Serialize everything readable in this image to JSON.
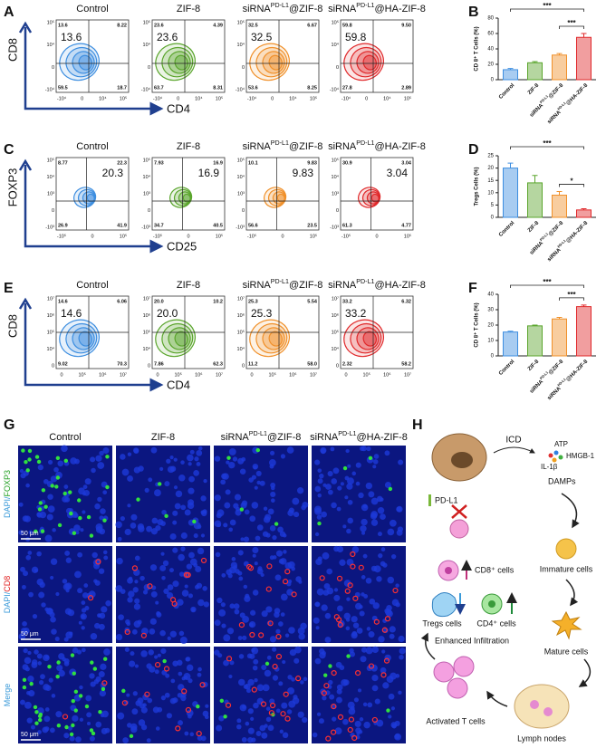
{
  "groups": [
    {
      "text": "Control",
      "color": "#3d8ee0"
    },
    {
      "text": "ZIF-8",
      "color": "#5aa52c"
    },
    {
      "text": "siRNA",
      "sup": "PD-L1",
      "after": "@ZIF-8",
      "color": "#f0902a"
    },
    {
      "text": "siRNA",
      "sup": "PD-L1",
      "after": "@HA-ZIF-8",
      "color": "#e0282a"
    }
  ],
  "panels": {
    "A": {
      "type": "flow",
      "letter": "A",
      "y_axis": "CD8",
      "x_axis": "CD4",
      "yticks": [
        "10⁵",
        "10⁴",
        "0",
        "-10⁴"
      ],
      "xticks": [
        "-10⁴",
        "0",
        "10⁴",
        "10⁵"
      ],
      "plots": [
        {
          "big": "13.6",
          "q": [
            "13.6",
            "8.22",
            "59.5",
            "18.7"
          ]
        },
        {
          "big": "23.6",
          "q": [
            "23.6",
            "4.39",
            "63.7",
            "8.31"
          ]
        },
        {
          "big": "32.5",
          "q": [
            "32.5",
            "6.67",
            "53.6",
            "8.25"
          ]
        },
        {
          "big": "59.8",
          "q": [
            "59.8",
            "9.50",
            "27.8",
            "2.89"
          ]
        }
      ]
    },
    "B": {
      "type": "bar",
      "letter": "B",
      "y_label": "CD 8⁺ T Cells (%)",
      "ylim": [
        0,
        80
      ],
      "yticks": [
        0,
        20,
        40,
        60,
        80
      ],
      "values": [
        13,
        22,
        32,
        55
      ],
      "errors": [
        1.5,
        1.5,
        2,
        5
      ],
      "significance": [
        "***",
        "***"
      ]
    },
    "C": {
      "type": "flow",
      "letter": "C",
      "y_axis": "FOXP3",
      "x_axis": "CD25",
      "yticks": [
        "10⁵",
        "10⁴",
        "10³",
        "0",
        "-10³"
      ],
      "xticks": [
        "-10⁵",
        "0",
        "10⁵"
      ],
      "plots": [
        {
          "big": "20.3",
          "q": [
            "8.77",
            "22.3",
            "26.9",
            "41.9"
          ]
        },
        {
          "big": "16.9",
          "q": [
            "7.93",
            "16.9",
            "34.7",
            "40.5"
          ]
        },
        {
          "big": "9.83",
          "q": [
            "10.1",
            "9.83",
            "56.6",
            "23.5"
          ]
        },
        {
          "big": "3.04",
          "q": [
            "30.9",
            "3.04",
            "61.3",
            "4.77"
          ]
        }
      ]
    },
    "D": {
      "type": "bar",
      "letter": "D",
      "y_label": "Tregs Cells (%)",
      "ylim": [
        0,
        25
      ],
      "yticks": [
        0,
        5,
        10,
        15,
        20,
        25
      ],
      "values": [
        20,
        14,
        9,
        3
      ],
      "errors": [
        2,
        3,
        1.5,
        0.5
      ],
      "significance": [
        "***",
        "*"
      ]
    },
    "E": {
      "type": "flow",
      "letter": "E",
      "y_axis": "CD8",
      "x_axis": "CD4",
      "yticks": [
        "10⁷",
        "10⁶",
        "10⁵",
        "10⁴",
        "0"
      ],
      "xticks": [
        "0",
        "10⁵",
        "10⁶",
        "10⁷"
      ],
      "plots": [
        {
          "big": "14.6",
          "q": [
            "14.6",
            "6.06",
            "9.02",
            "70.3"
          ]
        },
        {
          "big": "20.0",
          "q": [
            "20.0",
            "10.2",
            "7.86",
            "62.3"
          ]
        },
        {
          "big": "25.3",
          "q": [
            "25.3",
            "5.54",
            "11.2",
            "58.0"
          ]
        },
        {
          "big": "33.2",
          "q": [
            "33.2",
            "6.32",
            "2.32",
            "58.2"
          ]
        }
      ]
    },
    "F": {
      "type": "bar",
      "letter": "F",
      "y_label": "CD 8⁺ T Cells (%)",
      "ylim": [
        0,
        40
      ],
      "yticks": [
        0,
        10,
        20,
        30,
        40
      ],
      "values": [
        15.5,
        19.5,
        24,
        32
      ],
      "errors": [
        0.5,
        0.5,
        1,
        1
      ],
      "significance": [
        "***",
        "***"
      ]
    }
  },
  "imaging": {
    "letter": "G",
    "scale": "50 μm",
    "rows": [
      [
        {
          "text": "DAPI/",
          "color": "#3a9ad9"
        },
        {
          "text": "FOXP3",
          "color": "#22a022"
        }
      ],
      [
        {
          "text": "DAPI/",
          "color": "#3a9ad9"
        },
        {
          "text": "CD8",
          "color": "#e02020"
        }
      ],
      [
        {
          "text": "Merge",
          "color": "#3a9ad9"
        }
      ]
    ]
  },
  "diagram": {
    "letter": "H",
    "icd": "ICD",
    "atp": "ATP",
    "hmgb": "HMGB-1",
    "il": "IL-1β",
    "damps": "DAMPs",
    "pdl1": "PD-L1",
    "immature": "Immature cells",
    "mature": "Mature cells",
    "lymph": "Lymph nodes",
    "activated": "Activated T cells",
    "infiltration": "Enhanced Infiltration",
    "tregs": "Tregs cells",
    "cd4": "CD4⁺ cells",
    "cd8": "CD8⁺ cells"
  }
}
